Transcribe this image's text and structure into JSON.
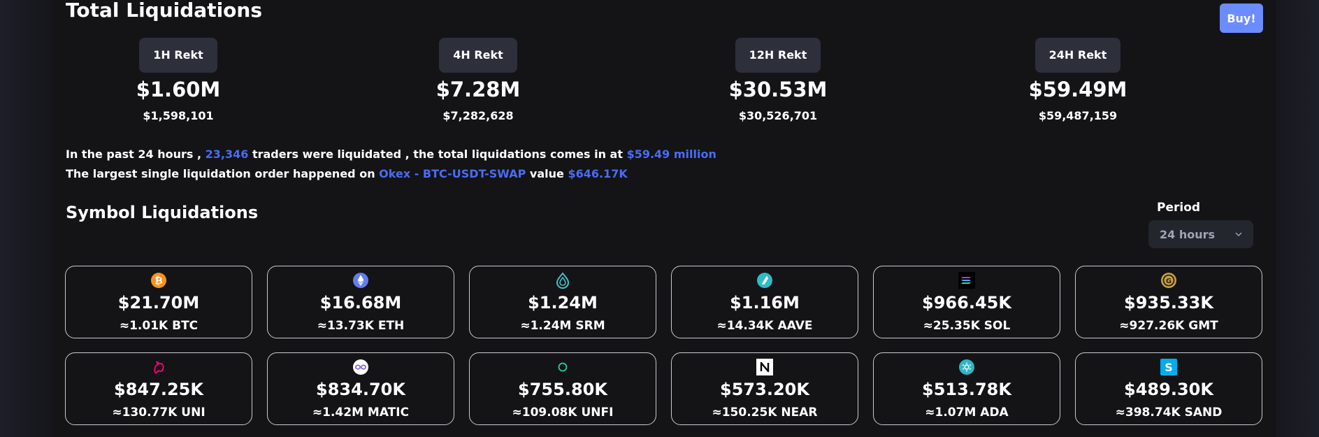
{
  "header": {
    "title": "Total Liquidations",
    "buy_label": "Buy!"
  },
  "rekt": [
    {
      "label": "1H Rekt",
      "amount": "$1.60M",
      "exact": "$1,598,101"
    },
    {
      "label": "4H Rekt",
      "amount": "$7.28M",
      "exact": "$7,282,628"
    },
    {
      "label": "12H Rekt",
      "amount": "$30.53M",
      "exact": "$30,526,701"
    },
    {
      "label": "24H Rekt",
      "amount": "$59.49M",
      "exact": "$59,487,159"
    }
  ],
  "summary": {
    "line1_prefix": "In the past 24 hours ,",
    "traders": "23,346",
    "line1_middle": "traders were liquidated , the total liquidations comes in at",
    "total": "$59.49 million",
    "line2_prefix": "The largest single liquidation order happened on",
    "exchange_pair": "Okex - BTC-USDT-SWAP",
    "line2_middle": "value",
    "largest_value": "$646.17K",
    "highlight_color": "#4a6cf7"
  },
  "symbols_section": {
    "title": "Symbol Liquidations",
    "period_label": "Period",
    "period_value": "24 hours"
  },
  "symbols": [
    {
      "amount": "$21.70M",
      "qty": "≈1.01K BTC",
      "icon": "btc-icon"
    },
    {
      "amount": "$16.68M",
      "qty": "≈13.73K ETH",
      "icon": "eth-icon"
    },
    {
      "amount": "$1.24M",
      "qty": "≈1.24M SRM",
      "icon": "srm-icon"
    },
    {
      "amount": "$1.16M",
      "qty": "≈14.34K AAVE",
      "icon": "aave-icon"
    },
    {
      "amount": "$966.45K",
      "qty": "≈25.35K SOL",
      "icon": "sol-icon"
    },
    {
      "amount": "$935.33K",
      "qty": "≈927.26K GMT",
      "icon": "gmt-icon"
    },
    {
      "amount": "$847.25K",
      "qty": "≈130.77K UNI",
      "icon": "uni-icon"
    },
    {
      "amount": "$834.70K",
      "qty": "≈1.42M MATIC",
      "icon": "matic-icon"
    },
    {
      "amount": "$755.80K",
      "qty": "≈109.08K UNFI",
      "icon": "unfi-icon"
    },
    {
      "amount": "$573.20K",
      "qty": "≈150.25K NEAR",
      "icon": "near-icon"
    },
    {
      "amount": "$513.78K",
      "qty": "≈1.07M ADA",
      "icon": "ada-icon"
    },
    {
      "amount": "$489.30K",
      "qty": "≈398.74K SAND",
      "icon": "sand-icon"
    }
  ]
}
